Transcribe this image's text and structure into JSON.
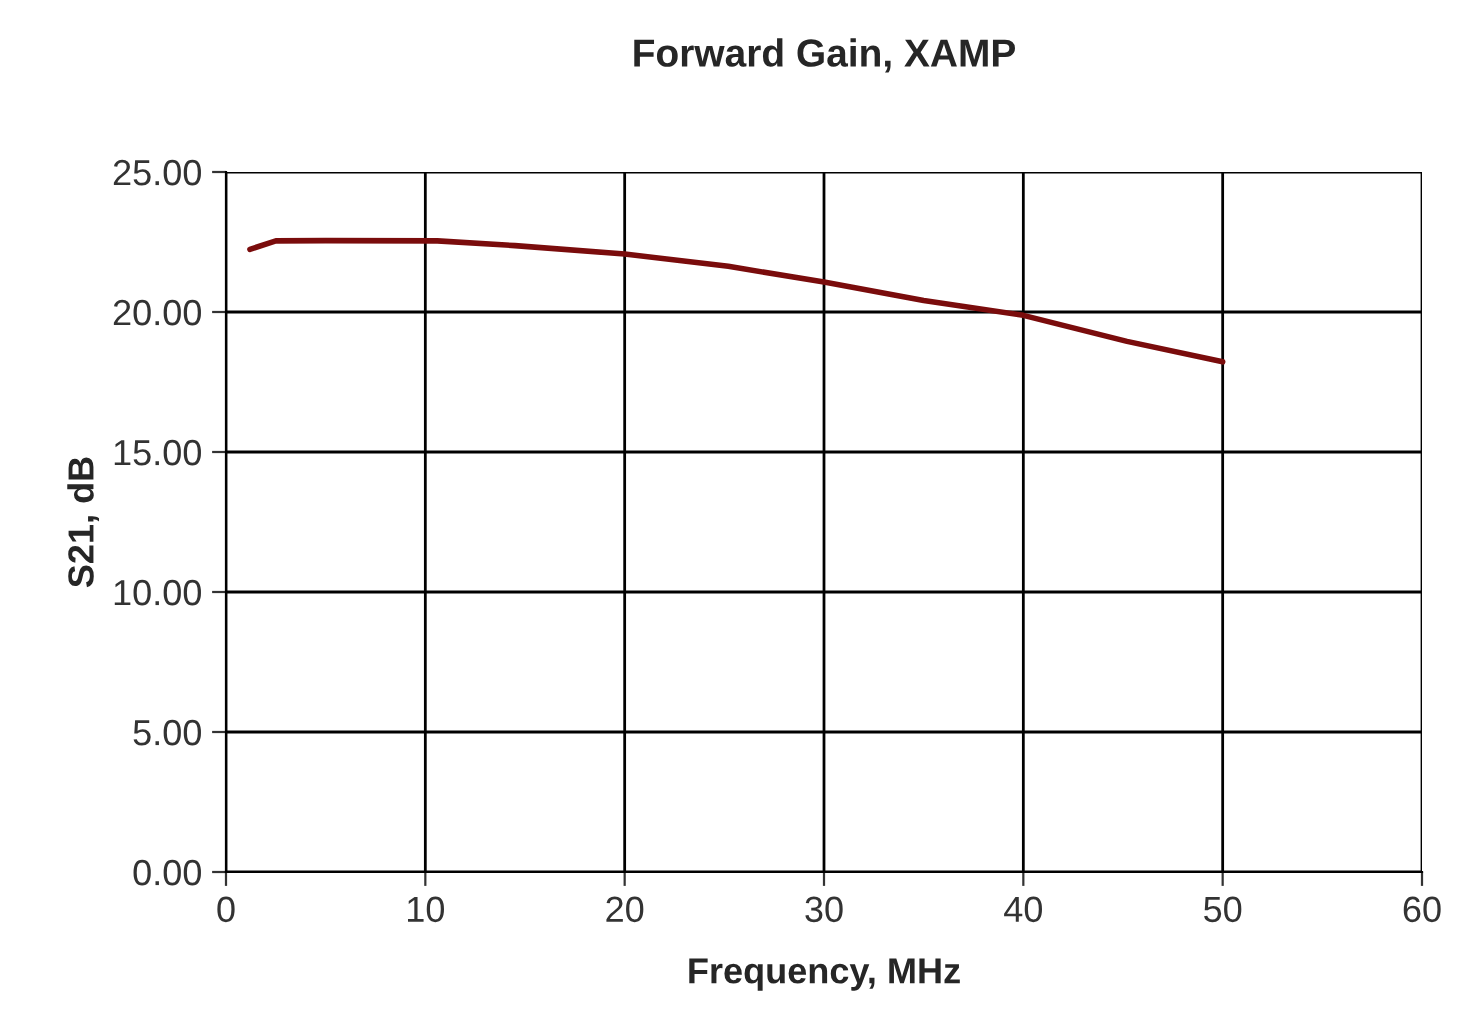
{
  "chart_data": {
    "type": "line",
    "title": "Forward Gain, XAMP",
    "xlabel": "Frequency, MHz",
    "ylabel": "S21, dB",
    "series": [
      {
        "color": "#7a0c0c",
        "x": [
          1.2,
          2.5,
          5,
          10.6,
          14.5,
          20,
          25.2,
          30,
          35,
          40,
          45.2,
          50
        ],
        "values": [
          22.24,
          22.54,
          22.55,
          22.54,
          22.37,
          22.07,
          21.63,
          21.07,
          20.41,
          19.88,
          18.95,
          18.22
        ]
      }
    ],
    "xlim": [
      0,
      60
    ],
    "xticks": [
      0,
      10,
      20,
      30,
      40,
      50,
      60
    ],
    "ylim": [
      0,
      25
    ],
    "yticks": [
      {
        "value": 0,
        "label": "0.00"
      },
      {
        "value": 5,
        "label": "5.00"
      },
      {
        "value": 10,
        "label": "10.00"
      },
      {
        "value": 15,
        "label": "15.00"
      },
      {
        "value": 20,
        "label": "20.00"
      },
      {
        "value": 25,
        "label": "25.00"
      }
    ],
    "grid": true,
    "legend": false,
    "marker": "none",
    "line_style": "solid"
  }
}
